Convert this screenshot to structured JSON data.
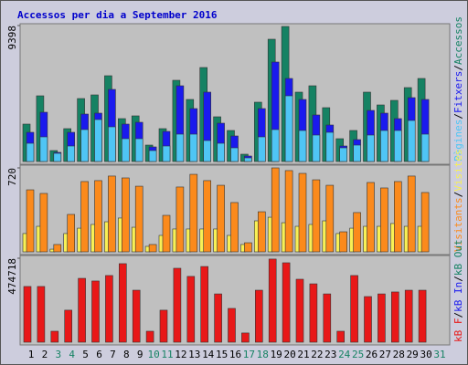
{
  "chart_data": [
    {
      "type": "bar",
      "title": "Accessos per dia a September 2016",
      "ylim": [
        0,
        9398
      ],
      "yticks": [
        9398
      ],
      "legend_separator": "/",
      "series": [
        {
          "name": "Pàgines",
          "color": "#4fc5f5",
          "values": [
            1261,
            1703,
            568,
            1072,
            2208,
            2901,
            2397,
            1577,
            1577,
            757,
            1072,
            1892,
            1892,
            1451,
            1261,
            946,
            252,
            1703,
            2208,
            4541,
            2145,
            1829,
            2018,
            946,
            1135,
            1829,
            2145,
            2145,
            2838,
            1892,
            null
          ]
        },
        {
          "name": "Fitxers",
          "color": "#1a1aee",
          "values": [
            2018,
            3406,
            631,
            2018,
            3280,
            3343,
            4983,
            2586,
            2712,
            1009,
            2081,
            5235,
            3658,
            4794,
            2649,
            1766,
            378,
            3658,
            6875,
            5740,
            4289,
            3217,
            2523,
            1072,
            1514,
            3532,
            3343,
            2964,
            4415,
            4289,
            null
          ]
        },
        {
          "name": "Accessos",
          "color": "#158263",
          "values": [
            2586,
            4541,
            757,
            2271,
            4352,
            4604,
            5929,
            2964,
            3154,
            1135,
            2271,
            5614,
            4289,
            6497,
            3091,
            2145,
            505,
            4100,
            8452,
            9335,
            4794,
            5235,
            3721,
            1577,
            2145,
            4794,
            3910,
            4226,
            5109,
            5740,
            null
          ]
        }
      ]
    },
    {
      "type": "bar",
      "ylim": [
        0,
        720
      ],
      "yticks": [
        720
      ],
      "legend_separator": "/",
      "series": [
        {
          "name": "Visitants",
          "color": "#fb8a1c",
          "values": [
            532,
            501,
            63,
            321,
            603,
            611,
            650,
            634,
            563,
            63,
            313,
            556,
            665,
            611,
            571,
            423,
            78,
            344,
            720,
            697,
            673,
            618,
            571,
            172,
            337,
            595,
            548,
            603,
            650,
            509,
            null
          ]
        },
        {
          "name": "Visites",
          "color": "#f8f055",
          "values": [
            157,
            219,
            23,
            157,
            203,
            235,
            258,
            290,
            211,
            47,
            141,
            196,
            196,
            196,
            196,
            141,
            63,
            266,
            297,
            250,
            219,
            235,
            266,
            157,
            203,
            219,
            219,
            243,
            219,
            219,
            null
          ]
        }
      ]
    },
    {
      "type": "bar",
      "ylim": [
        0,
        474718
      ],
      "yticks": [
        474718
      ],
      "legend_separator": "/",
      "categories": [
        "1",
        "2",
        "3",
        "4",
        "5",
        "6",
        "7",
        "8",
        "9",
        "10",
        "11",
        "12",
        "13",
        "14",
        "15",
        "16",
        "17",
        "18",
        "19",
        "20",
        "21",
        "22",
        "23",
        "24",
        "25",
        "26",
        "27",
        "28",
        "29",
        "30",
        "31"
      ],
      "category_colors": [
        "#000",
        "#000",
        "#158263",
        "#158263",
        "#000",
        "#000",
        "#000",
        "#000",
        "#000",
        "#158263",
        "#158263",
        "#000",
        "#000",
        "#000",
        "#000",
        "#000",
        "#158263",
        "#158263",
        "#000",
        "#000",
        "#000",
        "#000",
        "#000",
        "#158263",
        "#158263",
        "#000",
        "#000",
        "#000",
        "#000",
        "#000",
        "#158263"
      ],
      "series": [
        {
          "name": "kB F",
          "color": "#e81818",
          "values": [
            315000,
            315000,
            62000,
            181000,
            361000,
            346000,
            377000,
            444000,
            294000,
            62000,
            181000,
            418000,
            372000,
            428000,
            273000,
            191000,
            52000,
            294000,
            470000,
            449000,
            356000,
            330000,
            273000,
            62000,
            377000,
            258000,
            273000,
            284000,
            294000,
            294000,
            null
          ]
        },
        {
          "name": "kB In",
          "color": "#1a1aee",
          "values": [
            null,
            null,
            null,
            null,
            null,
            null,
            null,
            null,
            null,
            null,
            null,
            null,
            null,
            null,
            null,
            null,
            null,
            null,
            null,
            null,
            null,
            null,
            null,
            null,
            null,
            null,
            null,
            null,
            null,
            null,
            null
          ]
        },
        {
          "name": "kB Out",
          "color": "#158263",
          "values": [
            null,
            null,
            null,
            null,
            null,
            null,
            null,
            null,
            null,
            null,
            null,
            null,
            null,
            null,
            null,
            null,
            null,
            null,
            null,
            null,
            null,
            null,
            null,
            null,
            null,
            null,
            null,
            null,
            null,
            null,
            null
          ]
        }
      ]
    }
  ]
}
